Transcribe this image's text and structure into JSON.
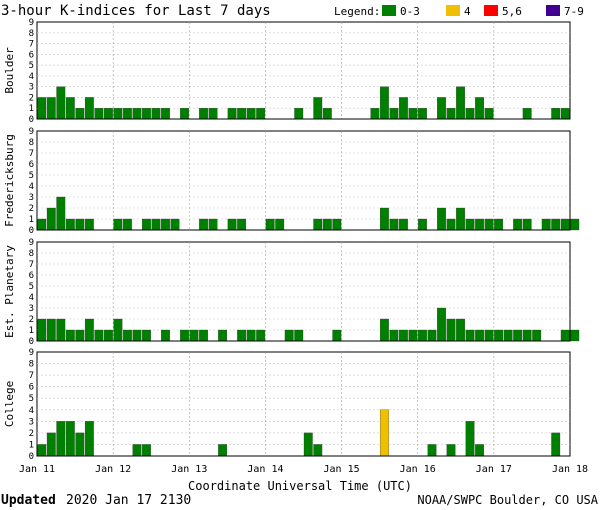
{
  "header": {
    "title": "3-hour K-indices for Last 7 days",
    "legend_label": "Legend:",
    "legend": [
      {
        "label": "0-3",
        "color": "#008000"
      },
      {
        "label": "4",
        "color": "#f0c000"
      },
      {
        "label": "5,6",
        "color": "#ff0000"
      },
      {
        "label": "7-9",
        "color": "#400090"
      }
    ]
  },
  "footer": {
    "updated_label": "Updated",
    "updated_value": "2020 Jan 17 2130",
    "credit": "NOAA/SWPC Boulder, CO USA"
  },
  "chart_data": {
    "type": "bar",
    "title": "3-hour K-indices for Last 7 days",
    "xlabel": "Coordinate Universal Time (UTC)",
    "x_tick_labels": [
      "Jan 11",
      "Jan 12",
      "Jan 13",
      "Jan 14",
      "Jan 15",
      "Jan 16",
      "Jan 17",
      "Jan 18"
    ],
    "y_ticks": [
      "0",
      "1",
      "2",
      "3",
      "4",
      "5",
      "6",
      "7",
      "8",
      "9"
    ],
    "ylim": [
      0,
      9
    ],
    "bins_per_day": 8,
    "grid": true,
    "legend_position": "top-right",
    "color_scale": [
      {
        "range": "0-3",
        "color": "#008000"
      },
      {
        "range": "4",
        "color": "#f0c000"
      },
      {
        "range": "5,6",
        "color": "#ff0000"
      },
      {
        "range": "7-9",
        "color": "#400090"
      }
    ],
    "panels": [
      {
        "name": "Boulder",
        "values": [
          2,
          2,
          3,
          2,
          1,
          2,
          1,
          1,
          1,
          1,
          1,
          1,
          1,
          1,
          0,
          1,
          0,
          1,
          1,
          0,
          1,
          1,
          1,
          1,
          0,
          0,
          0,
          1,
          0,
          2,
          1,
          0,
          0,
          0,
          0,
          1,
          3,
          1,
          2,
          1,
          1,
          0,
          2,
          1,
          3,
          1,
          2,
          1,
          0,
          0,
          0,
          1,
          0,
          0,
          1,
          1,
          0
        ]
      },
      {
        "name": "Fredericksburg",
        "values": [
          1,
          2,
          3,
          1,
          1,
          1,
          0,
          0,
          1,
          1,
          0,
          1,
          1,
          1,
          1,
          0,
          0,
          1,
          1,
          0,
          1,
          1,
          0,
          0,
          1,
          1,
          0,
          0,
          0,
          1,
          1,
          1,
          0,
          0,
          0,
          0,
          2,
          1,
          1,
          0,
          1,
          0,
          2,
          1,
          2,
          1,
          1,
          1,
          1,
          0,
          1,
          1,
          0,
          1,
          1,
          1,
          1
        ]
      },
      {
        "name": "Est. Planetary",
        "values": [
          2,
          2,
          2,
          1,
          1,
          2,
          1,
          1,
          2,
          1,
          1,
          1,
          0,
          1,
          0,
          1,
          1,
          1,
          0,
          1,
          0,
          1,
          1,
          1,
          0,
          0,
          1,
          1,
          0,
          0,
          0,
          1,
          0,
          0,
          0,
          0,
          2,
          1,
          1,
          1,
          1,
          1,
          3,
          2,
          2,
          1,
          1,
          1,
          1,
          1,
          1,
          1,
          1,
          0,
          0,
          1,
          1
        ]
      },
      {
        "name": "College",
        "values": [
          1,
          2,
          3,
          3,
          2,
          3,
          0,
          0,
          0,
          0,
          1,
          1,
          0,
          0,
          0,
          0,
          0,
          0,
          0,
          1,
          0,
          0,
          0,
          0,
          0,
          0,
          0,
          0,
          2,
          1,
          0,
          0,
          0,
          0,
          0,
          0,
          4,
          0,
          0,
          0,
          0,
          1,
          0,
          1,
          0,
          3,
          1,
          0,
          0,
          0,
          0,
          0,
          0,
          0,
          2,
          0,
          0
        ]
      }
    ]
  }
}
